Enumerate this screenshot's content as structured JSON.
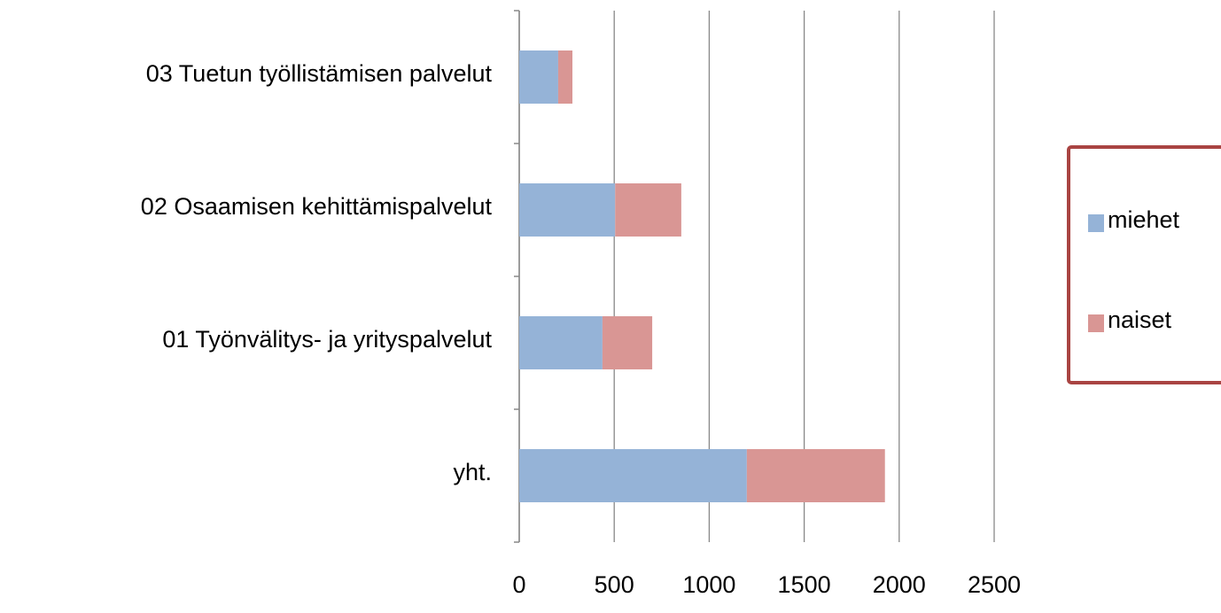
{
  "chart_data": {
    "type": "stacked-bar-horizontal",
    "categories": [
      "03 Tuetun työllistämisen palvelut",
      "02 Osaamisen kehittämispalvelut",
      "01 Työnvälitys- ja yrityspalvelut",
      "yht."
    ],
    "series": [
      {
        "name": "miehet",
        "color": "#95b3d7",
        "values": [
          205,
          505,
          438,
          1198
        ]
      },
      {
        "name": "naiset",
        "color": "#d99694",
        "values": [
          75,
          348,
          262,
          727
        ]
      }
    ],
    "xlim": [
      0,
      2500
    ],
    "xticks": [
      0,
      500,
      1000,
      1500,
      2000,
      2500
    ],
    "grid": true,
    "legend": "right"
  }
}
